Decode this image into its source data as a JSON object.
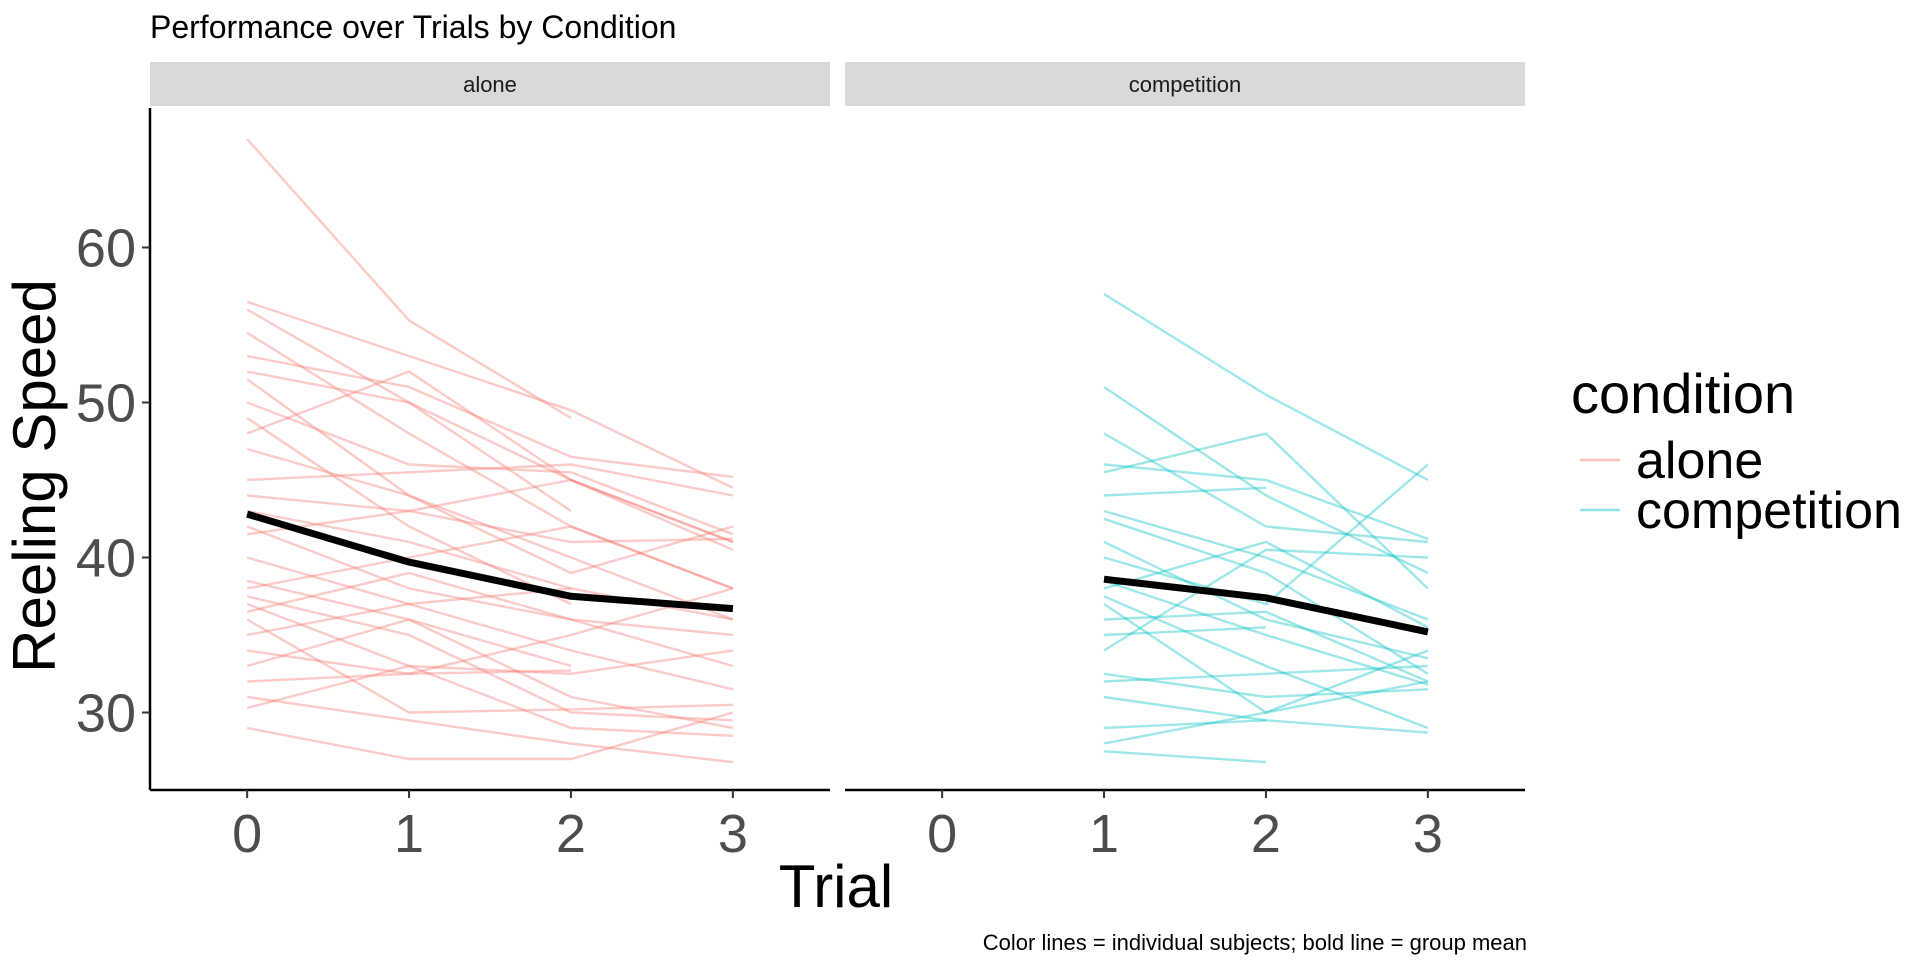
{
  "chart_data": {
    "type": "line",
    "title": "Performance over Trials by Condition",
    "xlabel": "Trial",
    "ylabel": "Reeling Speed",
    "caption": "Color lines = individual subjects; bold line = group mean",
    "ylim": [
      25,
      69
    ],
    "y_ticks": [
      30,
      40,
      50,
      60
    ],
    "x_ticks": [
      0,
      1,
      2,
      3
    ],
    "xlim": [
      -0.6,
      3.6
    ],
    "grid": false,
    "legend": {
      "title": "condition",
      "position": "right",
      "entries": [
        {
          "label": "alone",
          "color": "#F8766D"
        },
        {
          "label": "competition",
          "color": "#00BFC4"
        }
      ]
    },
    "mean_color": "#000000",
    "panels": [
      {
        "strip": "alone",
        "color": "#F8766D",
        "mean": {
          "x": [
            0,
            1,
            2,
            3
          ],
          "y": [
            42.8,
            39.7,
            37.5,
            36.7
          ]
        },
        "subjects": [
          {
            "x": [
              0,
              1,
              2
            ],
            "y": [
              67.0,
              55.3,
              49.0
            ]
          },
          {
            "x": [
              0,
              1,
              2,
              3
            ],
            "y": [
              56.5,
              53.0,
              49.5,
              44.5
            ]
          },
          {
            "x": [
              0,
              1,
              2,
              3
            ],
            "y": [
              56.0,
              50.0,
              45.0,
              41.0
            ]
          },
          {
            "x": [
              0,
              1,
              2,
              3
            ],
            "y": [
              54.5,
              48.0,
              42.0,
              38.0
            ]
          },
          {
            "x": [
              0,
              1,
              2,
              3
            ],
            "y": [
              53.0,
              51.0,
              46.5,
              45.2
            ]
          },
          {
            "x": [
              0,
              1,
              2
            ],
            "y": [
              52.0,
              50.0,
              43.0
            ]
          },
          {
            "x": [
              0,
              1,
              2,
              3
            ],
            "y": [
              51.5,
              44.0,
              40.0,
              36.0
            ]
          },
          {
            "x": [
              0,
              1,
              2,
              3
            ],
            "y": [
              50.0,
              46.0,
              45.5,
              41.5
            ]
          },
          {
            "x": [
              0,
              1,
              2
            ],
            "y": [
              49.0,
              42.0,
              37.0
            ]
          },
          {
            "x": [
              0,
              1,
              2,
              3
            ],
            "y": [
              48.0,
              52.0,
              45.0,
              40.5
            ]
          },
          {
            "x": [
              0,
              1,
              2,
              3
            ],
            "y": [
              47.0,
              44.0,
              39.0,
              42.0
            ]
          },
          {
            "x": [
              0,
              1,
              2,
              3
            ],
            "y": [
              45.0,
              45.5,
              46.0,
              44.0
            ]
          },
          {
            "x": [
              0,
              1,
              2,
              3
            ],
            "y": [
              44.0,
              43.0,
              45.0,
              41.0
            ]
          },
          {
            "x": [
              0,
              1,
              2
            ],
            "y": [
              43.0,
              41.0,
              38.0
            ]
          },
          {
            "x": [
              0,
              1,
              2,
              3
            ],
            "y": [
              42.0,
              38.0,
              36.0,
              33.0
            ]
          },
          {
            "x": [
              0,
              1,
              2,
              3
            ],
            "y": [
              41.5,
              43.0,
              41.0,
              41.2
            ]
          },
          {
            "x": [
              0,
              1,
              2,
              3
            ],
            "y": [
              40.0,
              37.0,
              34.0,
              31.5
            ]
          },
          {
            "x": [
              0,
              1,
              2
            ],
            "y": [
              38.5,
              36.0,
              33.0
            ]
          },
          {
            "x": [
              0,
              1,
              2,
              3
            ],
            "y": [
              38.0,
              40.0,
              42.0,
              38.0
            ]
          },
          {
            "x": [
              0,
              1,
              2,
              3
            ],
            "y": [
              37.5,
              35.0,
              30.0,
              29.5
            ]
          },
          {
            "x": [
              0,
              1,
              2,
              3
            ],
            "y": [
              37.0,
              33.0,
              32.5,
              34.0
            ]
          },
          {
            "x": [
              0,
              1,
              2,
              3
            ],
            "y": [
              36.5,
              39.0,
              36.0,
              35.0
            ]
          },
          {
            "x": [
              0,
              1,
              2,
              3
            ],
            "y": [
              36.0,
              30.0,
              30.2,
              30.5
            ]
          },
          {
            "x": [
              0,
              1,
              2,
              3
            ],
            "y": [
              35.0,
              37.0,
              38.0,
              36.0
            ]
          },
          {
            "x": [
              0,
              1,
              2
            ],
            "y": [
              34.0,
              32.5,
              32.7
            ]
          },
          {
            "x": [
              0,
              1,
              2,
              3
            ],
            "y": [
              33.0,
              36.0,
              31.0,
              29.0
            ]
          },
          {
            "x": [
              0,
              1,
              2,
              3
            ],
            "y": [
              32.0,
              32.5,
              35.0,
              38.0
            ]
          },
          {
            "x": [
              0,
              1,
              2,
              3
            ],
            "y": [
              31.0,
              29.5,
              28.0,
              26.8
            ]
          },
          {
            "x": [
              0,
              1,
              2,
              3
            ],
            "y": [
              30.3,
              33.0,
              29.0,
              28.5
            ]
          },
          {
            "x": [
              0,
              1,
              2,
              3
            ],
            "y": [
              29.0,
              27.0,
              27.0,
              30.0
            ]
          }
        ]
      },
      {
        "strip": "competition",
        "color": "#00BFC4",
        "mean": {
          "x": [
            1,
            2,
            3
          ],
          "y": [
            38.6,
            37.4,
            35.2
          ]
        },
        "subjects": [
          {
            "x": [
              1,
              2,
              3
            ],
            "y": [
              57.0,
              50.5,
              45.0
            ]
          },
          {
            "x": [
              1,
              2,
              3
            ],
            "y": [
              51.0,
              44.0,
              39.0
            ]
          },
          {
            "x": [
              1,
              2,
              3
            ],
            "y": [
              48.0,
              42.0,
              41.0
            ]
          },
          {
            "x": [
              1,
              2,
              3
            ],
            "y": [
              46.0,
              45.0,
              41.2
            ]
          },
          {
            "x": [
              1,
              2,
              3
            ],
            "y": [
              45.5,
              48.0,
              38.0
            ]
          },
          {
            "x": [
              1,
              2
            ],
            "y": [
              44.0,
              44.5
            ]
          },
          {
            "x": [
              1,
              2,
              3
            ],
            "y": [
              43.0,
              40.0,
              36.0
            ]
          },
          {
            "x": [
              1,
              2,
              3
            ],
            "y": [
              42.5,
              39.0,
              32.5
            ]
          },
          {
            "x": [
              1,
              2,
              3
            ],
            "y": [
              41.0,
              36.0,
              33.5
            ]
          },
          {
            "x": [
              1,
              2,
              3
            ],
            "y": [
              40.0,
              37.0,
              46.0
            ]
          },
          {
            "x": [
              1,
              2,
              3
            ],
            "y": [
              38.5,
              35.0,
              31.8
            ]
          },
          {
            "x": [
              1,
              2,
              3
            ],
            "y": [
              38.0,
              41.0,
              35.5
            ]
          },
          {
            "x": [
              1,
              2,
              3
            ],
            "y": [
              37.5,
              33.0,
              29.0
            ]
          },
          {
            "x": [
              1,
              2,
              3
            ],
            "y": [
              37.0,
              30.0,
              34.0
            ]
          },
          {
            "x": [
              1,
              2,
              3
            ],
            "y": [
              36.0,
              36.5,
              32.0
            ]
          },
          {
            "x": [
              1,
              2
            ],
            "y": [
              35.0,
              35.5
            ]
          },
          {
            "x": [
              1,
              2,
              3
            ],
            "y": [
              34.0,
              40.5,
              40.0
            ]
          },
          {
            "x": [
              1,
              2,
              3
            ],
            "y": [
              32.5,
              31.0,
              31.5
            ]
          },
          {
            "x": [
              1,
              2,
              3
            ],
            "y": [
              32.0,
              32.5,
              33.0
            ]
          },
          {
            "x": [
              1,
              2,
              3
            ],
            "y": [
              31.0,
              29.5,
              28.7
            ]
          },
          {
            "x": [
              1,
              2
            ],
            "y": [
              29.0,
              29.5
            ]
          },
          {
            "x": [
              1,
              2,
              3
            ],
            "y": [
              28.0,
              30.0,
              32.0
            ]
          },
          {
            "x": [
              1,
              2
            ],
            "y": [
              27.5,
              26.8
            ]
          }
        ]
      }
    ]
  }
}
